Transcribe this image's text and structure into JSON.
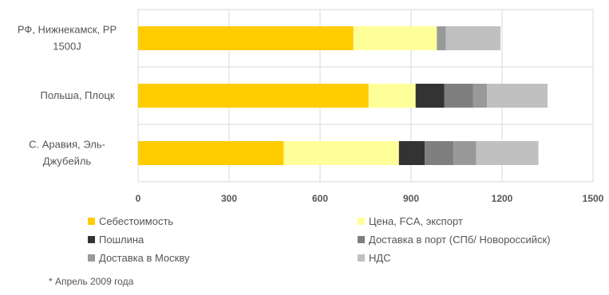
{
  "chart_data": {
    "type": "bar",
    "orientation": "horizontal",
    "stacked": true,
    "categories": [
      "РФ, Нижнекамск, PP 1500J",
      "Польша, Плоцк",
      "С. Аравия, Эль-Джубейль"
    ],
    "category_lines": [
      [
        "РФ, Нижнекамск, PP",
        "1500J"
      ],
      [
        "Польша, Плоцк"
      ],
      [
        "С. Аравия, Эль-",
        "Джубейль"
      ]
    ],
    "series": [
      {
        "name": "Себестоимость",
        "color": "#FFCC00",
        "values": [
          710,
          760,
          480
        ]
      },
      {
        "name": "Цена, FCA, экспорт",
        "color": "#FFFF99",
        "values": [
          275,
          155,
          380
        ]
      },
      {
        "name": "Пошлина",
        "color": "#333333",
        "values": [
          0,
          95,
          85
        ]
      },
      {
        "name": "Доставка в порт (СПб/ Новороссийск)",
        "color": "#7F7F7F",
        "values": [
          0,
          95,
          95
        ]
      },
      {
        "name": "Доставка в Москву",
        "color": "#999999",
        "values": [
          30,
          45,
          75
        ]
      },
      {
        "name": "НДС",
        "color": "#C0C0C0",
        "values": [
          180,
          200,
          205
        ]
      }
    ],
    "xlim": [
      0,
      1500
    ],
    "xticks": [
      "0",
      "300",
      "600",
      "900",
      "1200",
      "1500"
    ],
    "grid": true,
    "legend_position": "bottom",
    "footnote": "* Апрель 2009 года"
  }
}
